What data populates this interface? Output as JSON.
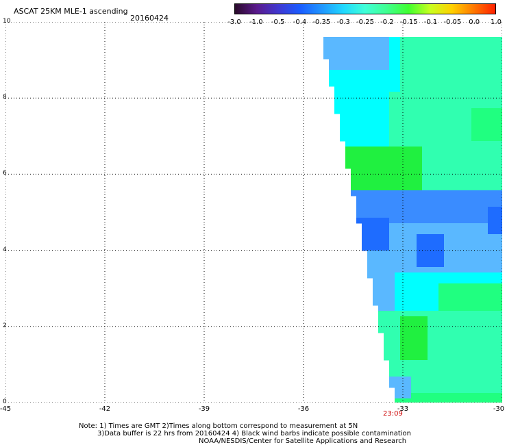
{
  "header": {
    "title": "ASCAT 25KM MLE-1 ascending",
    "date": "20160424"
  },
  "colorbar": {
    "ticks": [
      "-3.0",
      "-1.0",
      "-0.5",
      "-0.4",
      "-0.35",
      "-0.3",
      "-0.25",
      "-0.2",
      "-0.15",
      "-0.1",
      "-0.05",
      "0.0",
      "1.0"
    ],
    "colors": [
      "#2a0a2a",
      "#5a1a8c",
      "#4038d0",
      "#1a5cff",
      "#2096ff",
      "#20d8ff",
      "#40ffd8",
      "#40ff90",
      "#40ff30",
      "#c8ff20",
      "#ffd000",
      "#ff7800",
      "#ff2000"
    ]
  },
  "axes": {
    "x_ticks": [
      "-45",
      "-42",
      "-39",
      "-36",
      "-33",
      "-30"
    ],
    "y_ticks": [
      "0",
      "2",
      "4",
      "6",
      "8",
      "10"
    ],
    "x_range": [
      -45,
      -30
    ],
    "y_range": [
      0,
      10
    ],
    "grid": "dotted"
  },
  "swath": {
    "time_label": "23:09",
    "palette": {
      "blue": "#1e6cff",
      "mid_blue": "#3a8cff",
      "light_blue": "#5ab8ff",
      "cyan": "#00ffff",
      "cyan_green": "#30ffb0",
      "green_cyan": "#20ff80",
      "green": "#20f040"
    }
  },
  "notes": {
    "line1": "Note: 1) Times are GMT 2)Times along bottom correspond to measurement at 5N",
    "line2": "3)Data buffer is 22 hrs from 20160424 4) Black wind barbs indicate possible contamination",
    "line3": "NOAA/NESDIS/Center for Satellite Applications and Research"
  }
}
